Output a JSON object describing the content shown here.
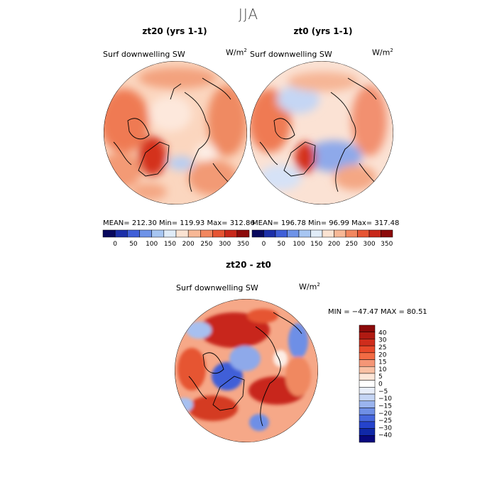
{
  "figure_title": "JJA",
  "panels": [
    {
      "title": "zt20 (yrs 1-1)",
      "variable": "Surf downwelling SW",
      "units": "W/m",
      "units_sup": "2",
      "stats_text": "MEAN= 212.30   Min= 119.93   Max= 312.86",
      "stats": {
        "mean": 212.3,
        "min": 119.93,
        "max": 312.86
      }
    },
    {
      "title": "zt0 (yrs 1-1)",
      "variable": "Surf downwelling SW",
      "units": "W/m",
      "units_sup": "2",
      "stats_text": "MEAN= 196.78   Min=   96.99   Max= 317.48",
      "stats": {
        "mean": 196.78,
        "min": 96.99,
        "max": 317.48
      }
    },
    {
      "title": "zt20 - zt0",
      "variable": "Surf downwelling SW",
      "units": "W/m",
      "units_sup": "2",
      "stats_text": "MIN = −47.47  MAX =   80.51",
      "stats": {
        "min": -47.47,
        "max": 80.51
      }
    }
  ],
  "abs_colorbar": {
    "tick_labels": [
      "0",
      "50",
      "100",
      "150",
      "200",
      "250",
      "300",
      "350"
    ],
    "colors": [
      "#08085e",
      "#1c2fa8",
      "#3f5fd8",
      "#6e93e8",
      "#a7c6f2",
      "#e0ecf8",
      "#fbe3d2",
      "#f7b896",
      "#f2875f",
      "#e65533",
      "#c8281a",
      "#8c0a0a"
    ]
  },
  "diff_colorbar": {
    "tick_labels": [
      "40",
      "30",
      "25",
      "20",
      "15",
      "10",
      "5",
      "0",
      "−5",
      "−10",
      "−15",
      "−20",
      "−25",
      "−30",
      "−40"
    ],
    "colors_top_to_bottom": [
      "#8c0a0a",
      "#b01a12",
      "#cf2d1c",
      "#e8492a",
      "#f26b44",
      "#f59676",
      "#f9c0a4",
      "#fde6d8",
      "#ffffff",
      "#e8eefa",
      "#c5d5f5",
      "#9ab4ee",
      "#6f8fe6",
      "#4667dd",
      "#2543cc",
      "#1028a8",
      "#08087e"
    ]
  },
  "colors": {
    "land_outline": "#000000",
    "map_border": "#000000"
  }
}
